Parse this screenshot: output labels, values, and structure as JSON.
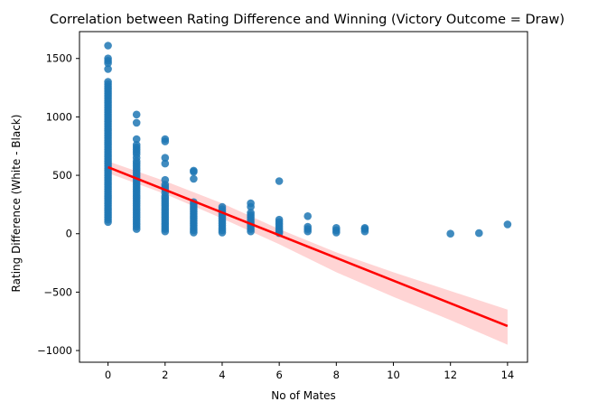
{
  "chart_data": {
    "type": "scatter",
    "title": "Correlation between Rating Difference and Winning (Victory Outcome = Draw)",
    "xlabel": "No of Mates",
    "ylabel": "Rating Difference (White - Black)",
    "xlim": [
      -1,
      14.7
    ],
    "ylim": [
      -1100,
      1730
    ],
    "xticks": [
      0,
      2,
      4,
      6,
      8,
      10,
      12,
      14
    ],
    "yticks": [
      -1000,
      -500,
      0,
      500,
      1000,
      1500
    ],
    "grid": false,
    "point_color": "#1f77b4",
    "regression_color": "#ff0000",
    "ci_color": "#ffb0b0",
    "series": [
      {
        "kind": "points",
        "points": [
          [
            0,
            1610
          ],
          [
            0,
            1500
          ],
          [
            0,
            1480
          ],
          [
            0,
            1460
          ],
          [
            0,
            1410
          ],
          [
            0,
            1300
          ],
          [
            0,
            1280
          ],
          [
            0,
            1260
          ],
          [
            0,
            1240
          ],
          [
            0,
            1220
          ],
          [
            0,
            1200
          ],
          [
            0,
            1180
          ],
          [
            0,
            1160
          ],
          [
            0,
            1140
          ],
          [
            0,
            1120
          ],
          [
            0,
            1100
          ],
          [
            0,
            1080
          ],
          [
            0,
            1060
          ],
          [
            0,
            1040
          ],
          [
            0,
            1020
          ],
          [
            0,
            1000
          ],
          [
            0,
            980
          ],
          [
            0,
            960
          ],
          [
            0,
            940
          ],
          [
            0,
            920
          ],
          [
            0,
            900
          ],
          [
            0,
            880
          ],
          [
            0,
            860
          ],
          [
            0,
            840
          ],
          [
            0,
            820
          ],
          [
            0,
            800
          ],
          [
            0,
            780
          ],
          [
            0,
            760
          ],
          [
            0,
            740
          ],
          [
            0,
            720
          ],
          [
            0,
            700
          ],
          [
            0,
            680
          ],
          [
            0,
            660
          ],
          [
            0,
            640
          ],
          [
            0,
            620
          ],
          [
            0,
            600
          ],
          [
            0,
            580
          ],
          [
            0,
            560
          ],
          [
            0,
            540
          ],
          [
            0,
            520
          ],
          [
            0,
            500
          ],
          [
            0,
            480
          ],
          [
            0,
            460
          ],
          [
            0,
            440
          ],
          [
            0,
            420
          ],
          [
            0,
            400
          ],
          [
            0,
            380
          ],
          [
            0,
            360
          ],
          [
            0,
            340
          ],
          [
            0,
            320
          ],
          [
            0,
            300
          ],
          [
            0,
            280
          ],
          [
            0,
            260
          ],
          [
            0,
            240
          ],
          [
            0,
            220
          ],
          [
            0,
            200
          ],
          [
            0,
            180
          ],
          [
            0,
            160
          ],
          [
            0,
            140
          ],
          [
            0,
            120
          ],
          [
            0,
            100
          ],
          [
            1,
            1020
          ],
          [
            1,
            950
          ],
          [
            1,
            810
          ],
          [
            1,
            760
          ],
          [
            1,
            740
          ],
          [
            1,
            720
          ],
          [
            1,
            700
          ],
          [
            1,
            680
          ],
          [
            1,
            650
          ],
          [
            1,
            620
          ],
          [
            1,
            600
          ],
          [
            1,
            580
          ],
          [
            1,
            560
          ],
          [
            1,
            540
          ],
          [
            1,
            520
          ],
          [
            1,
            500
          ],
          [
            1,
            480
          ],
          [
            1,
            460
          ],
          [
            1,
            440
          ],
          [
            1,
            420
          ],
          [
            1,
            400
          ],
          [
            1,
            380
          ],
          [
            1,
            360
          ],
          [
            1,
            340
          ],
          [
            1,
            320
          ],
          [
            1,
            300
          ],
          [
            1,
            280
          ],
          [
            1,
            260
          ],
          [
            1,
            240
          ],
          [
            1,
            220
          ],
          [
            1,
            200
          ],
          [
            1,
            180
          ],
          [
            1,
            160
          ],
          [
            1,
            140
          ],
          [
            1,
            120
          ],
          [
            1,
            100
          ],
          [
            1,
            80
          ],
          [
            1,
            60
          ],
          [
            1,
            40
          ],
          [
            2,
            810
          ],
          [
            2,
            790
          ],
          [
            2,
            650
          ],
          [
            2,
            600
          ],
          [
            2,
            460
          ],
          [
            2,
            420
          ],
          [
            2,
            400
          ],
          [
            2,
            380
          ],
          [
            2,
            350
          ],
          [
            2,
            320
          ],
          [
            2,
            300
          ],
          [
            2,
            280
          ],
          [
            2,
            260
          ],
          [
            2,
            240
          ],
          [
            2,
            220
          ],
          [
            2,
            200
          ],
          [
            2,
            180
          ],
          [
            2,
            160
          ],
          [
            2,
            140
          ],
          [
            2,
            120
          ],
          [
            2,
            100
          ],
          [
            2,
            80
          ],
          [
            2,
            60
          ],
          [
            2,
            40
          ],
          [
            2,
            20
          ],
          [
            3,
            540
          ],
          [
            3,
            530
          ],
          [
            3,
            470
          ],
          [
            3,
            270
          ],
          [
            3,
            250
          ],
          [
            3,
            230
          ],
          [
            3,
            210
          ],
          [
            3,
            190
          ],
          [
            3,
            170
          ],
          [
            3,
            150
          ],
          [
            3,
            130
          ],
          [
            3,
            110
          ],
          [
            3,
            90
          ],
          [
            3,
            70
          ],
          [
            3,
            50
          ],
          [
            3,
            30
          ],
          [
            3,
            10
          ],
          [
            4,
            230
          ],
          [
            4,
            210
          ],
          [
            4,
            190
          ],
          [
            4,
            170
          ],
          [
            4,
            150
          ],
          [
            4,
            130
          ],
          [
            4,
            110
          ],
          [
            4,
            90
          ],
          [
            4,
            70
          ],
          [
            4,
            50
          ],
          [
            4,
            30
          ],
          [
            4,
            10
          ],
          [
            5,
            260
          ],
          [
            5,
            230
          ],
          [
            5,
            180
          ],
          [
            5,
            160
          ],
          [
            5,
            140
          ],
          [
            5,
            120
          ],
          [
            5,
            100
          ],
          [
            5,
            80
          ],
          [
            5,
            60
          ],
          [
            5,
            40
          ],
          [
            5,
            20
          ],
          [
            6,
            450
          ],
          [
            6,
            120
          ],
          [
            6,
            100
          ],
          [
            6,
            80
          ],
          [
            6,
            60
          ],
          [
            6,
            40
          ],
          [
            6,
            20
          ],
          [
            6,
            5
          ],
          [
            7,
            150
          ],
          [
            7,
            60
          ],
          [
            7,
            40
          ],
          [
            7,
            20
          ],
          [
            8,
            50
          ],
          [
            8,
            30
          ],
          [
            8,
            10
          ],
          [
            9,
            50
          ],
          [
            9,
            40
          ],
          [
            9,
            20
          ],
          [
            12,
            0
          ],
          [
            13,
            5
          ],
          [
            14,
            80
          ]
        ]
      },
      {
        "kind": "regression",
        "line": [
          [
            0,
            570
          ],
          [
            14,
            -790
          ]
        ],
        "ci_upper": [
          [
            0,
            620
          ],
          [
            2,
            450
          ],
          [
            4,
            260
          ],
          [
            6,
            40
          ],
          [
            8,
            -160
          ],
          [
            10,
            -330
          ],
          [
            12,
            -490
          ],
          [
            14,
            -650
          ]
        ],
        "ci_lower": [
          [
            0,
            520
          ],
          [
            2,
            340
          ],
          [
            4,
            130
          ],
          [
            6,
            -90
          ],
          [
            8,
            -330
          ],
          [
            10,
            -540
          ],
          [
            12,
            -740
          ],
          [
            14,
            -950
          ]
        ]
      }
    ]
  }
}
